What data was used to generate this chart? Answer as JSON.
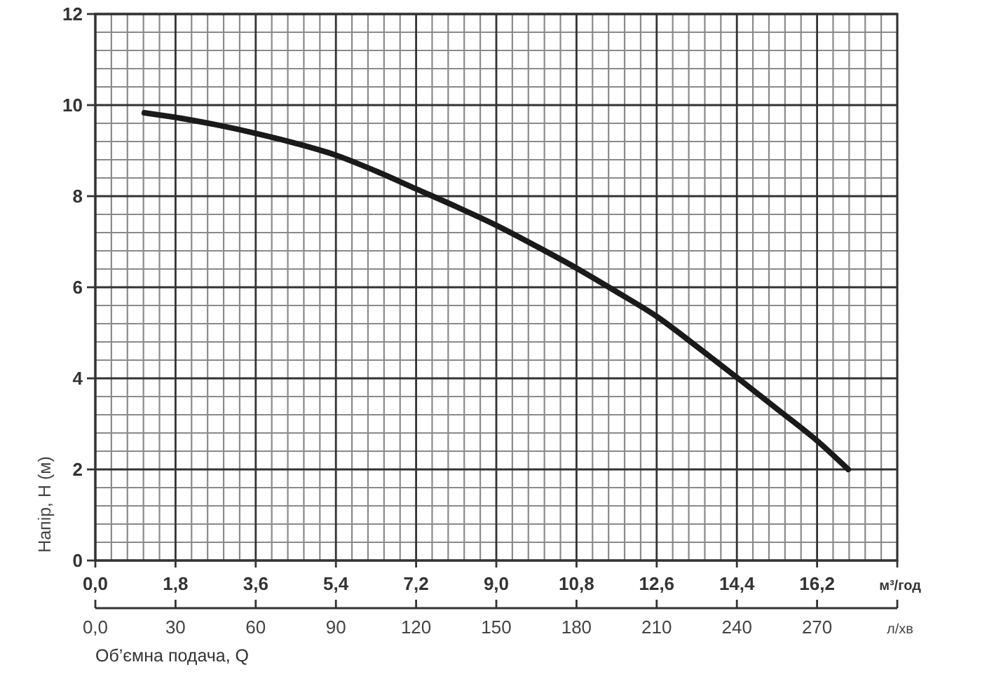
{
  "chart_data": {
    "type": "line",
    "ylabel": "Напір, Н (м)",
    "xlabel": "м³/год",
    "x2label": "л/хв",
    "annotations": [
      "Об’ємна подача, Q"
    ],
    "x": [
      1.1,
      1.8,
      2.7,
      3.6,
      4.5,
      5.4,
      6.3,
      7.2,
      8.1,
      9.0,
      9.9,
      10.8,
      11.7,
      12.6,
      13.5,
      14.4,
      15.3,
      16.2,
      16.9
    ],
    "series": [
      {
        "color": "#1a1a1a",
        "values": [
          9.83,
          9.73,
          9.57,
          9.38,
          9.16,
          8.9,
          8.55,
          8.16,
          7.77,
          7.36,
          6.9,
          6.42,
          5.9,
          5.36,
          4.7,
          4.02,
          3.33,
          2.63,
          2.0
        ]
      }
    ],
    "xlim": [
      0,
      18
    ],
    "ylim": [
      0,
      12
    ],
    "x2lim": [
      0,
      300
    ],
    "xticks": [
      {
        "value": 0,
        "label": "0,0"
      },
      {
        "value": 0.36,
        "label": null
      },
      {
        "value": 0.72,
        "label": null
      },
      {
        "value": 1.08,
        "label": null
      },
      {
        "value": 1.44,
        "label": null
      },
      {
        "value": 1.8,
        "label": "1,8"
      },
      {
        "value": 2.16,
        "label": null
      },
      {
        "value": 2.52,
        "label": null
      },
      {
        "value": 2.88,
        "label": null
      },
      {
        "value": 3.24,
        "label": null
      },
      {
        "value": 3.6,
        "label": "3,6"
      },
      {
        "value": 3.96,
        "label": null
      },
      {
        "value": 4.32,
        "label": null
      },
      {
        "value": 4.68,
        "label": null
      },
      {
        "value": 5.04,
        "label": null
      },
      {
        "value": 5.4,
        "label": "5,4"
      },
      {
        "value": 5.76,
        "label": null
      },
      {
        "value": 6.12,
        "label": null
      },
      {
        "value": 6.48,
        "label": null
      },
      {
        "value": 6.84,
        "label": null
      },
      {
        "value": 7.2,
        "label": "7,2"
      },
      {
        "value": 7.56,
        "label": null
      },
      {
        "value": 7.92,
        "label": null
      },
      {
        "value": 8.28,
        "label": null
      },
      {
        "value": 8.64,
        "label": null
      },
      {
        "value": 9.0,
        "label": "9,0"
      },
      {
        "value": 9.36,
        "label": null
      },
      {
        "value": 9.72,
        "label": null
      },
      {
        "value": 10.08,
        "label": null
      },
      {
        "value": 10.44,
        "label": null
      },
      {
        "value": 10.8,
        "label": "10,8"
      },
      {
        "value": 11.16,
        "label": null
      },
      {
        "value": 11.52,
        "label": null
      },
      {
        "value": 11.88,
        "label": null
      },
      {
        "value": 12.24,
        "label": null
      },
      {
        "value": 12.6,
        "label": "12,6"
      },
      {
        "value": 12.96,
        "label": null
      },
      {
        "value": 13.32,
        "label": null
      },
      {
        "value": 13.68,
        "label": null
      },
      {
        "value": 14.04,
        "label": null
      },
      {
        "value": 14.4,
        "label": "14,4"
      },
      {
        "value": 14.76,
        "label": null
      },
      {
        "value": 15.12,
        "label": null
      },
      {
        "value": 15.48,
        "label": null
      },
      {
        "value": 15.84,
        "label": null
      },
      {
        "value": 16.2,
        "label": "16,2"
      },
      {
        "value": 16.56,
        "label": null
      },
      {
        "value": 16.92,
        "label": null
      },
      {
        "value": 17.28,
        "label": null
      },
      {
        "value": 17.64,
        "label": null
      }
    ],
    "yticks": [
      0,
      {
        "value": 0.4,
        "label": null
      },
      {
        "value": 0.8,
        "label": null
      },
      {
        "value": 1.2,
        "label": null
      },
      {
        "value": 1.6,
        "label": null
      },
      2,
      {
        "value": 2.4,
        "label": null
      },
      {
        "value": 2.8,
        "label": null
      },
      {
        "value": 3.2,
        "label": null
      },
      {
        "value": 3.6,
        "label": null
      },
      4,
      {
        "value": 4.4,
        "label": null
      },
      {
        "value": 4.8,
        "label": null
      },
      {
        "value": 5.2,
        "label": null
      },
      {
        "value": 5.6,
        "label": null
      },
      6,
      {
        "value": 6.4,
        "label": null
      },
      {
        "value": 6.8,
        "label": null
      },
      {
        "value": 7.2,
        "label": null
      },
      {
        "value": 7.6,
        "label": null
      },
      8,
      {
        "value": 8.4,
        "label": null
      },
      {
        "value": 8.8,
        "label": null
      },
      {
        "value": 9.2,
        "label": null
      },
      {
        "value": 9.6,
        "label": null
      },
      10,
      {
        "value": 10.4,
        "label": null
      },
      {
        "value": 10.8,
        "label": null
      },
      {
        "value": 11.2,
        "label": null
      },
      {
        "value": 11.6,
        "label": null
      },
      12
    ],
    "x2ticks": [
      {
        "value": 0,
        "label": "0,0"
      },
      30,
      60,
      90,
      120,
      150,
      180,
      210,
      240,
      270
    ],
    "grid": true
  }
}
